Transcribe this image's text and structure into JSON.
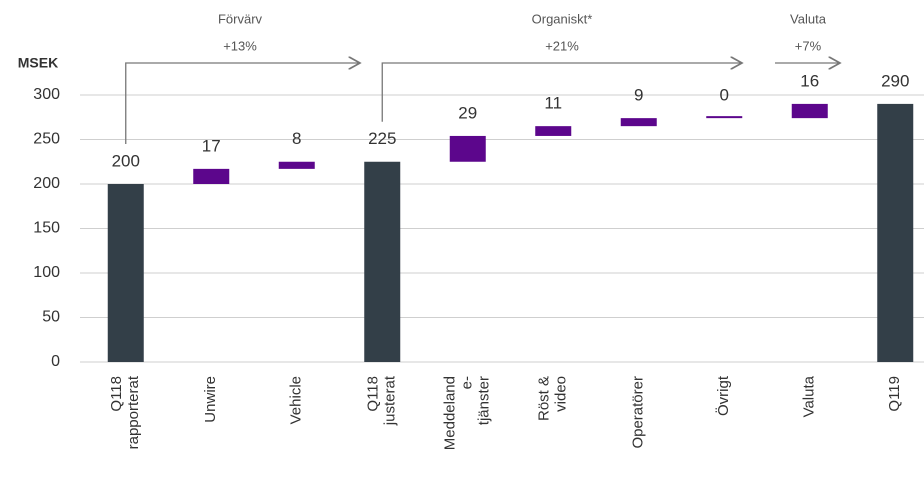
{
  "chart_data": {
    "type": "waterfall",
    "y_unit_label": "MSEK",
    "categories": [
      [
        "Q118",
        "rapporterat"
      ],
      [
        "Unwire"
      ],
      [
        "Vehicle"
      ],
      [
        "Q118",
        "justerat"
      ],
      [
        "Meddeland",
        "e-",
        "tjänster"
      ],
      [
        "Röst &",
        "video"
      ],
      [
        "Operatörer"
      ],
      [
        "Övrigt"
      ],
      [
        "Valuta"
      ],
      [
        "Q119"
      ]
    ],
    "values": [
      200,
      17,
      8,
      225,
      29,
      11,
      9,
      0,
      16,
      290
    ],
    "measure": [
      "total",
      "relative",
      "relative",
      "total",
      "relative",
      "relative",
      "relative",
      "relative",
      "relative",
      "total"
    ],
    "total_color": "#333f48",
    "increase_color": "#5c068c",
    "ylim": [
      0,
      300
    ],
    "yticks": [
      0,
      50,
      100,
      150,
      200,
      250,
      300
    ],
    "grid": true,
    "annotations": [
      {
        "title": "Förvärv",
        "change": "+13%"
      },
      {
        "title": "Organiskt*",
        "change": "+21%"
      },
      {
        "title": "Valuta",
        "change": "+7%"
      }
    ]
  }
}
